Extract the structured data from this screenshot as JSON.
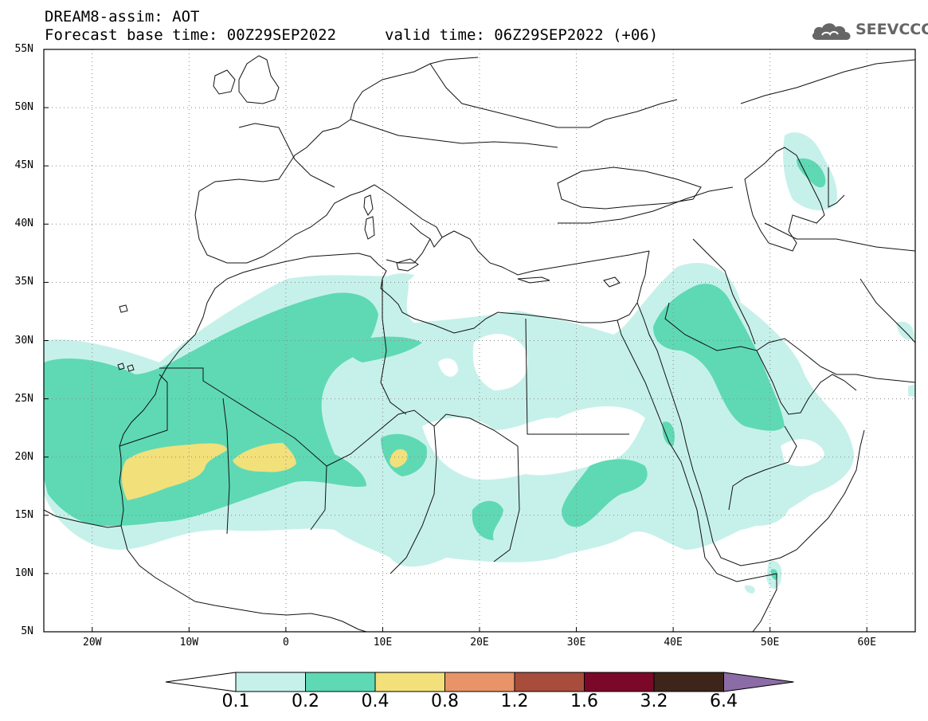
{
  "header": {
    "line1": "DREAM8-assim: AOT",
    "line2": "Forecast base time: 00Z29SEP2022",
    "line3": "valid time: 06Z29SEP2022 (+06)"
  },
  "logo": {
    "text": "SEEVCCC",
    "icon": "cloud-icon",
    "color": "#666666"
  },
  "map": {
    "projection": "lat-lon",
    "lon_range": [
      -25,
      65
    ],
    "lat_range": [
      5,
      55
    ],
    "grid": "dotted",
    "lat_labels": [
      "55N",
      "50N",
      "45N",
      "40N",
      "35N",
      "30N",
      "25N",
      "20N",
      "15N",
      "10N",
      "5N"
    ],
    "lon_labels": [
      "20W",
      "10W",
      "0",
      "10E",
      "20E",
      "30E",
      "40E",
      "50E",
      "60E"
    ]
  },
  "colorbar": {
    "labels": [
      "0.1",
      "0.2",
      "0.4",
      "0.8",
      "1.2",
      "1.6",
      "3.2",
      "6.4"
    ],
    "colors": [
      "#c6f1ea",
      "#5ed9b4",
      "#f2e07b",
      "#e89468",
      "#a84d3c",
      "#7b0828",
      "#3d2619",
      "#8c6ca6"
    ],
    "under_color": "#ffffff"
  }
}
